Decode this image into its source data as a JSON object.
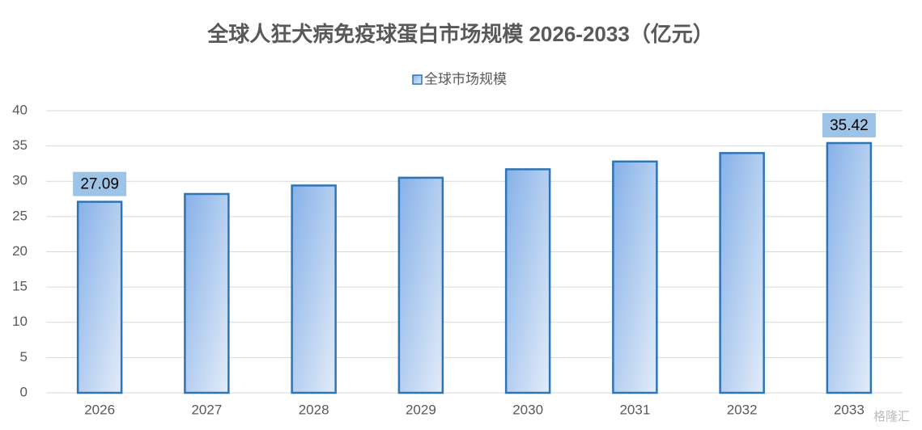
{
  "chart_data": {
    "type": "bar",
    "title": "全球人狂犬病免疫球蛋白市场规模 2026-2033（亿元）",
    "categories": [
      "2026",
      "2027",
      "2028",
      "2029",
      "2030",
      "2031",
      "2032",
      "2033"
    ],
    "series": [
      {
        "name": "全球市场规模",
        "color": "#2e75b6",
        "values": [
          27.09,
          28.2,
          29.4,
          30.5,
          31.7,
          32.8,
          34.0,
          35.42
        ],
        "value_labels": [
          "27.09",
          null,
          null,
          null,
          null,
          null,
          null,
          "35.42"
        ]
      }
    ],
    "ylim": [
      0,
      40
    ],
    "yticks": [
      0,
      5,
      10,
      15,
      20,
      25,
      30,
      35,
      40
    ],
    "grid": true,
    "legend": "top",
    "watermark": "格隆汇"
  }
}
